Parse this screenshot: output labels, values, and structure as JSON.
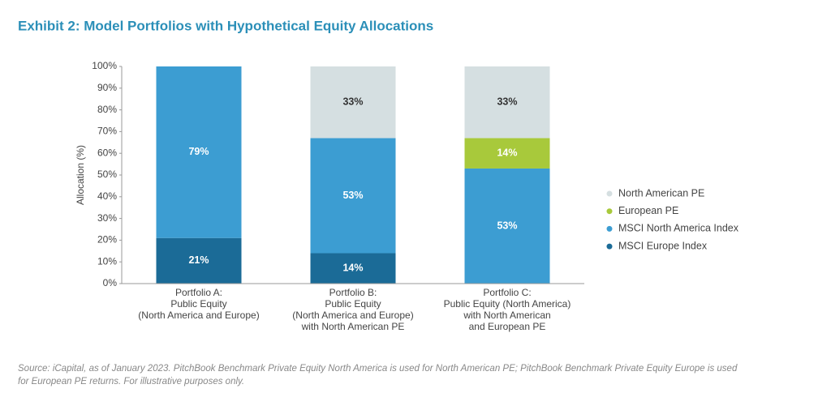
{
  "chart_data": {
    "type": "stacked_bar",
    "title": "Exhibit 2: Model Portfolios with Hypothetical Equity Allocations",
    "y_label": "Allocation (%)",
    "categories": [
      "Portfolio A:\nPublic Equity\n(North America and Europe)",
      "Portfolio B:\nPublic Equity\n(North America and Europe)\nwith North American PE",
      "Portfolio C:\nPublic Equity (North America)\nwith North American\nand European PE"
    ],
    "series": [
      {
        "name": "MSCI Europe Index",
        "color": "#1b6b97",
        "values": [
          21,
          14,
          0
        ],
        "value_labels": [
          "21%",
          "14%",
          null
        ]
      },
      {
        "name": "MSCI North America Index",
        "color": "#3c9dd2",
        "values": [
          79,
          53,
          53
        ],
        "value_labels": [
          "79%",
          "53%",
          "53%"
        ]
      },
      {
        "name": "European PE",
        "color": "#a8c93b",
        "values": [
          0,
          0,
          14
        ],
        "value_labels": [
          null,
          null,
          "14%"
        ]
      },
      {
        "name": "North American PE",
        "color": "#d5dfe1",
        "values": [
          0,
          33,
          33
        ],
        "value_labels": [
          null,
          "33%",
          "33%"
        ]
      }
    ],
    "ylim": [
      0,
      100
    ],
    "yticks": [
      {
        "value": 0,
        "label": "0%"
      },
      {
        "value": 10,
        "label": "10%"
      },
      {
        "value": 20,
        "label": "20%"
      },
      {
        "value": 30,
        "label": "30%"
      },
      {
        "value": 40,
        "label": "40%"
      },
      {
        "value": 50,
        "label": "50%"
      },
      {
        "value": 60,
        "label": "60%"
      },
      {
        "value": 70,
        "label": "70%"
      },
      {
        "value": 80,
        "label": "80%"
      },
      {
        "value": 90,
        "label": "90%"
      },
      {
        "value": 100,
        "label": "100%"
      }
    ],
    "grid": false,
    "legend": "right",
    "source": [
      "Source: iCapital, as of January 2023. PitchBook Benchmark Private Equity North America is used for North American PE; PitchBook Benchmark Private Equity Europe is used",
      "for European PE returns. For illustrative purposes only."
    ]
  }
}
